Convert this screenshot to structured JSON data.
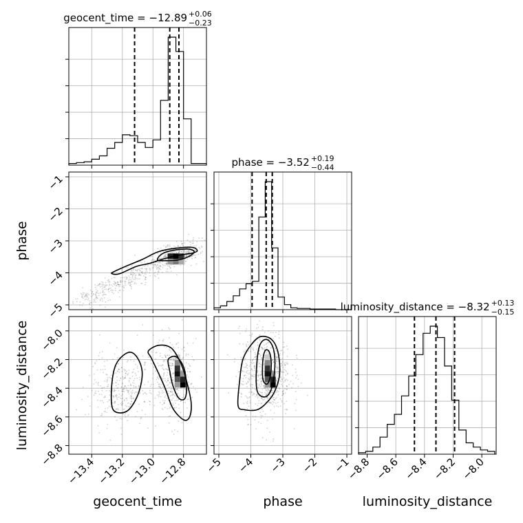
{
  "chart_data": {
    "type": "corner",
    "parameters": [
      "geocent_time",
      "phase",
      "luminosity_distance"
    ],
    "panel_titles": [
      {
        "param": "geocent_time",
        "prefix": "geocent_time = ",
        "median": "−12.89",
        "plus": "+0.06",
        "minus": "−0.23"
      },
      {
        "param": "phase",
        "prefix": "phase = ",
        "median": "−3.52",
        "plus": "+0.19",
        "minus": "−0.44"
      },
      {
        "param": "luminosity_distance",
        "prefix": "luminosity_distance = ",
        "median": "−8.32",
        "plus": "+0.13",
        "minus": "−0.15"
      }
    ],
    "axes": {
      "geocent_time": {
        "label": "geocent_time",
        "lim": [
          -13.55,
          -12.65
        ],
        "ticks": [
          -13.4,
          -13.2,
          -13.0,
          -12.8
        ],
        "tick_labels": [
          "−13.4",
          "−13.2",
          "−13.0",
          "−12.8"
        ]
      },
      "phase": {
        "label": "phase",
        "lim": [
          -5.15,
          -0.85
        ],
        "ticks": [
          -5,
          -4,
          -3,
          -2,
          -1
        ],
        "tick_labels": [
          "−5",
          "−4",
          "−3",
          "−2",
          "−1"
        ]
      },
      "luminosity_distance": {
        "label": "luminosity_distance",
        "lim": [
          -8.86,
          -7.9
        ],
        "ticks": [
          -8.8,
          -8.6,
          -8.4,
          -8.2,
          -8.0
        ],
        "tick_labels": [
          "−8.8",
          "−8.6",
          "−8.4",
          "−8.2",
          "−8.0"
        ]
      }
    },
    "histograms": {
      "geocent_time": {
        "quantiles": [
          -13.12,
          -12.89,
          -12.83
        ],
        "bin_edges": [
          -13.55,
          -13.5,
          -13.45,
          -13.4,
          -13.35,
          -13.3,
          -13.25,
          -13.2,
          -13.15,
          -13.1,
          -13.05,
          -13.0,
          -12.95,
          -12.9,
          -12.85,
          -12.8,
          -12.75,
          -12.7,
          -12.65
        ],
        "counts": [
          2,
          3,
          4,
          7,
          11,
          20,
          27,
          36,
          35,
          27,
          21,
          30,
          77,
          152,
          135,
          55,
          2,
          2
        ]
      },
      "phase": {
        "quantiles": [
          -3.96,
          -3.52,
          -3.33
        ],
        "bin_edges": [
          -5.15,
          -4.95,
          -4.75,
          -4.55,
          -4.35,
          -4.15,
          -3.95,
          -3.75,
          -3.55,
          -3.35,
          -3.15,
          -2.95,
          -2.75,
          -2.55,
          -2.35,
          -2.15,
          -1.95,
          -1.75,
          -1.55,
          -1.35,
          -1.15,
          -0.85
        ],
        "counts": [
          3,
          6,
          13,
          22,
          33,
          41,
          45,
          147,
          203,
          98,
          20,
          8,
          3,
          2,
          2,
          1,
          1,
          1,
          1,
          0,
          0
        ]
      },
      "luminosity_distance": {
        "quantiles": [
          -8.47,
          -8.32,
          -8.19
        ],
        "bin_edges": [
          -8.86,
          -8.81,
          -8.76,
          -8.71,
          -8.66,
          -8.61,
          -8.56,
          -8.51,
          -8.46,
          -8.41,
          -8.36,
          -8.31,
          -8.26,
          -8.21,
          -8.16,
          -8.11,
          -8.06,
          -8.01,
          -7.96,
          -7.91
        ],
        "counts": [
          1,
          2,
          5,
          12,
          21,
          28,
          41,
          55,
          70,
          85,
          90,
          82,
          62,
          38,
          17,
          8,
          5,
          3,
          2
        ]
      }
    },
    "scatter_pairs": [
      {
        "x": "geocent_time",
        "y": "phase"
      },
      {
        "x": "geocent_time",
        "y": "luminosity_distance"
      },
      {
        "x": "phase",
        "y": "luminosity_distance"
      }
    ],
    "contour_regions": [
      {
        "x": "geocent_time",
        "y": "phase",
        "levels": [
          [
            [
              -13.27,
              -4.02
            ],
            [
              -13.22,
              -4.03
            ],
            [
              -13.11,
              -3.8
            ],
            [
              -13.02,
              -3.7
            ],
            [
              -12.92,
              -3.55
            ],
            [
              -12.83,
              -3.45
            ],
            [
              -12.74,
              -3.38
            ],
            [
              -12.71,
              -3.3
            ],
            [
              -12.75,
              -3.2
            ],
            [
              -12.88,
              -3.25
            ],
            [
              -12.97,
              -3.35
            ],
            [
              -13.07,
              -3.58
            ],
            [
              -13.18,
              -3.8
            ],
            [
              -13.25,
              -3.95
            ]
          ],
          [
            [
              -12.97,
              -3.6
            ],
            [
              -12.92,
              -3.62
            ],
            [
              -12.84,
              -3.6
            ],
            [
              -12.77,
              -3.5
            ],
            [
              -12.73,
              -3.35
            ],
            [
              -12.76,
              -3.26
            ],
            [
              -12.83,
              -3.27
            ],
            [
              -12.9,
              -3.33
            ],
            [
              -12.95,
              -3.44
            ]
          ]
        ]
      },
      {
        "x": "geocent_time",
        "y": "luminosity_distance",
        "levels": [
          [
            [
              -13.26,
              -8.55
            ],
            [
              -13.17,
              -8.56
            ],
            [
              -13.1,
              -8.45
            ],
            [
              -13.07,
              -8.3
            ],
            [
              -13.1,
              -8.19
            ],
            [
              -13.16,
              -8.15
            ],
            [
              -13.24,
              -8.23
            ],
            [
              -13.27,
              -8.39
            ]
          ],
          [
            [
              -13.03,
              -8.14
            ],
            [
              -12.96,
              -8.1
            ],
            [
              -12.88,
              -8.12
            ],
            [
              -12.82,
              -8.22
            ],
            [
              -12.78,
              -8.35
            ],
            [
              -12.75,
              -8.5
            ],
            [
              -12.76,
              -8.6
            ],
            [
              -12.8,
              -8.62
            ],
            [
              -12.87,
              -8.54
            ],
            [
              -12.92,
              -8.4
            ],
            [
              -12.97,
              -8.28
            ],
            [
              -13.01,
              -8.19
            ]
          ],
          [
            [
              -12.9,
              -8.2
            ],
            [
              -12.85,
              -8.18
            ],
            [
              -12.8,
              -8.25
            ],
            [
              -12.78,
              -8.38
            ],
            [
              -12.79,
              -8.47
            ],
            [
              -12.83,
              -8.47
            ],
            [
              -12.87,
              -8.38
            ],
            [
              -12.89,
              -8.28
            ]
          ]
        ]
      },
      {
        "x": "phase",
        "y": "luminosity_distance",
        "levels": [
          [
            [
              -4.4,
              -8.52
            ],
            [
              -4.2,
              -8.55
            ],
            [
              -3.8,
              -8.55
            ],
            [
              -3.5,
              -8.5
            ],
            [
              -3.25,
              -8.42
            ],
            [
              -3.1,
              -8.3
            ],
            [
              -3.15,
              -8.15
            ],
            [
              -3.35,
              -8.06
            ],
            [
              -3.7,
              -8.04
            ],
            [
              -4.0,
              -8.1
            ],
            [
              -4.25,
              -8.2
            ],
            [
              -4.35,
              -8.35
            ]
          ],
          [
            [
              -3.8,
              -8.42
            ],
            [
              -3.55,
              -8.46
            ],
            [
              -3.35,
              -8.4
            ],
            [
              -3.25,
              -8.25
            ],
            [
              -3.3,
              -8.12
            ],
            [
              -3.5,
              -8.06
            ],
            [
              -3.72,
              -8.1
            ],
            [
              -3.82,
              -8.25
            ]
          ],
          [
            [
              -3.62,
              -8.34
            ],
            [
              -3.48,
              -8.37
            ],
            [
              -3.38,
              -8.3
            ],
            [
              -3.37,
              -8.2
            ],
            [
              -3.44,
              -8.14
            ],
            [
              -3.56,
              -8.14
            ],
            [
              -3.63,
              -8.22
            ]
          ]
        ]
      }
    ],
    "density_peaks": [
      {
        "x": "geocent_time",
        "y": "phase",
        "center": [
          -12.85,
          -3.48
        ]
      },
      {
        "x": "geocent_time",
        "y": "luminosity_distance",
        "center": [
          -12.84,
          -8.28
        ]
      },
      {
        "x": "phase",
        "y": "luminosity_distance",
        "center": [
          -3.48,
          -8.28
        ]
      }
    ],
    "grid": true
  }
}
